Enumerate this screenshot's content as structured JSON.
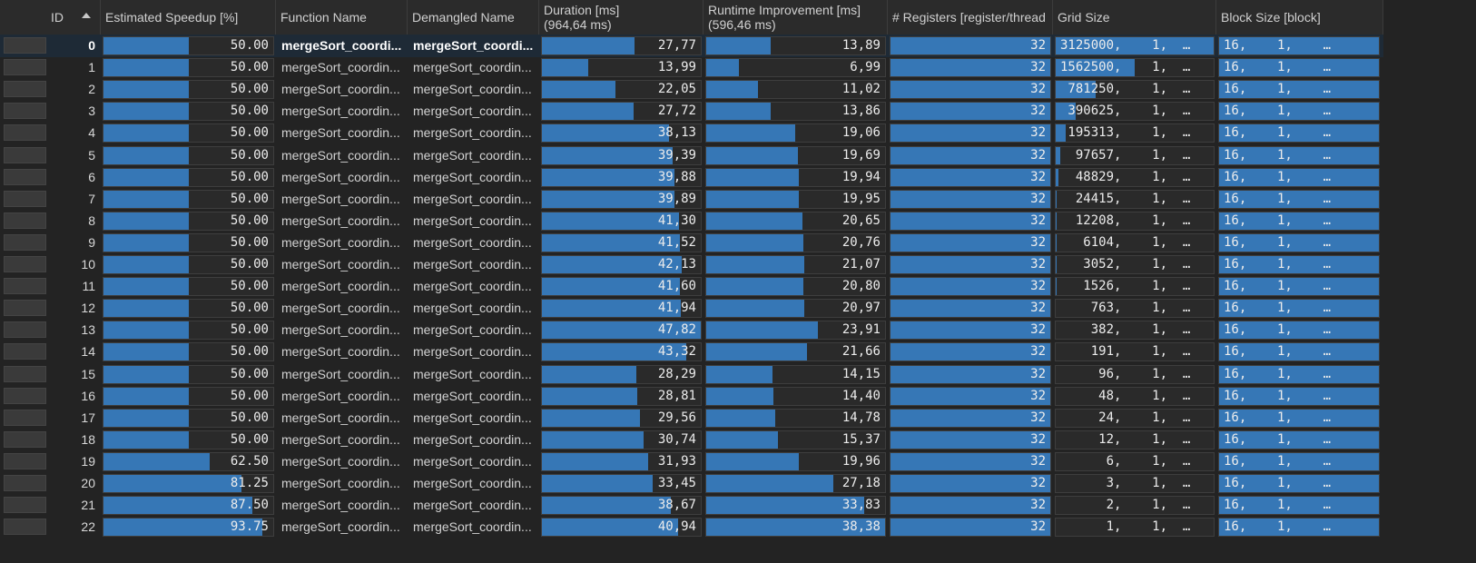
{
  "columns": {
    "id": "ID",
    "speedup": "Estimated Speedup [%]",
    "function": "Function Name",
    "demangled": "Demangled Name",
    "duration": "Duration [ms]",
    "duration_total": "(964,64 ms)",
    "runtime": "Runtime Improvement [ms]",
    "runtime_total": "(596,46 ms)",
    "registers": "# Registers [register/thread",
    "grid": "Grid Size",
    "block": "Block Size [block]"
  },
  "colors": {
    "bar": "#3677b6",
    "background": "#232323",
    "selected_row": "#1e2a36"
  },
  "sort": {
    "column": "ID",
    "direction": "ascending",
    "icon": "sort-ascending-icon"
  },
  "scales": {
    "speedup_max": 100,
    "duration_max": 47.82,
    "runtime_max": 38.38,
    "grid_max": 3125000
  },
  "rows": [
    {
      "id": "0",
      "speedup": 50.0,
      "speedup_text": "50.00",
      "fn": "mergeSort_coordi...",
      "dm": "mergeSort_coordi...",
      "dur": 27.77,
      "dur_text": "27,77",
      "rt": 13.89,
      "rt_text": "13,89",
      "reg": "32",
      "grid": 3125000,
      "grid_text": "3125000,    1,  …",
      "block": "16,    1,    …"
    },
    {
      "id": "1",
      "speedup": 50.0,
      "speedup_text": "50.00",
      "fn": "mergeSort_coordin...",
      "dm": "mergeSort_coordin...",
      "dur": 13.99,
      "dur_text": "13,99",
      "rt": 6.99,
      "rt_text": "6,99",
      "reg": "32",
      "grid": 1562500,
      "grid_text": "1562500,    1,  …",
      "block": "16,    1,    …"
    },
    {
      "id": "2",
      "speedup": 50.0,
      "speedup_text": "50.00",
      "fn": "mergeSort_coordin...",
      "dm": "mergeSort_coordin...",
      "dur": 22.05,
      "dur_text": "22,05",
      "rt": 11.02,
      "rt_text": "11,02",
      "reg": "32",
      "grid": 781250,
      "grid_text": " 781250,    1,  …",
      "block": "16,    1,    …"
    },
    {
      "id": "3",
      "speedup": 50.0,
      "speedup_text": "50.00",
      "fn": "mergeSort_coordin...",
      "dm": "mergeSort_coordin...",
      "dur": 27.72,
      "dur_text": "27,72",
      "rt": 13.86,
      "rt_text": "13,86",
      "reg": "32",
      "grid": 390625,
      "grid_text": " 390625,    1,  …",
      "block": "16,    1,    …"
    },
    {
      "id": "4",
      "speedup": 50.0,
      "speedup_text": "50.00",
      "fn": "mergeSort_coordin...",
      "dm": "mergeSort_coordin...",
      "dur": 38.13,
      "dur_text": "38,13",
      "rt": 19.06,
      "rt_text": "19,06",
      "reg": "32",
      "grid": 195313,
      "grid_text": " 195313,    1,  …",
      "block": "16,    1,    …"
    },
    {
      "id": "5",
      "speedup": 50.0,
      "speedup_text": "50.00",
      "fn": "mergeSort_coordin...",
      "dm": "mergeSort_coordin...",
      "dur": 39.39,
      "dur_text": "39,39",
      "rt": 19.69,
      "rt_text": "19,69",
      "reg": "32",
      "grid": 97657,
      "grid_text": "  97657,    1,  …",
      "block": "16,    1,    …"
    },
    {
      "id": "6",
      "speedup": 50.0,
      "speedup_text": "50.00",
      "fn": "mergeSort_coordin...",
      "dm": "mergeSort_coordin...",
      "dur": 39.88,
      "dur_text": "39,88",
      "rt": 19.94,
      "rt_text": "19,94",
      "reg": "32",
      "grid": 48829,
      "grid_text": "  48829,    1,  …",
      "block": "16,    1,    …"
    },
    {
      "id": "7",
      "speedup": 50.0,
      "speedup_text": "50.00",
      "fn": "mergeSort_coordin...",
      "dm": "mergeSort_coordin...",
      "dur": 39.89,
      "dur_text": "39,89",
      "rt": 19.95,
      "rt_text": "19,95",
      "reg": "32",
      "grid": 24415,
      "grid_text": "  24415,    1,  …",
      "block": "16,    1,    …"
    },
    {
      "id": "8",
      "speedup": 50.0,
      "speedup_text": "50.00",
      "fn": "mergeSort_coordin...",
      "dm": "mergeSort_coordin...",
      "dur": 41.3,
      "dur_text": "41,30",
      "rt": 20.65,
      "rt_text": "20,65",
      "reg": "32",
      "grid": 12208,
      "grid_text": "  12208,    1,  …",
      "block": "16,    1,    …"
    },
    {
      "id": "9",
      "speedup": 50.0,
      "speedup_text": "50.00",
      "fn": "mergeSort_coordin...",
      "dm": "mergeSort_coordin...",
      "dur": 41.52,
      "dur_text": "41,52",
      "rt": 20.76,
      "rt_text": "20,76",
      "reg": "32",
      "grid": 6104,
      "grid_text": "   6104,    1,  …",
      "block": "16,    1,    …"
    },
    {
      "id": "10",
      "speedup": 50.0,
      "speedup_text": "50.00",
      "fn": "mergeSort_coordin...",
      "dm": "mergeSort_coordin...",
      "dur": 42.13,
      "dur_text": "42,13",
      "rt": 21.07,
      "rt_text": "21,07",
      "reg": "32",
      "grid": 3052,
      "grid_text": "   3052,    1,  …",
      "block": "16,    1,    …"
    },
    {
      "id": "11",
      "speedup": 50.0,
      "speedup_text": "50.00",
      "fn": "mergeSort_coordin...",
      "dm": "mergeSort_coordin...",
      "dur": 41.6,
      "dur_text": "41,60",
      "rt": 20.8,
      "rt_text": "20,80",
      "reg": "32",
      "grid": 1526,
      "grid_text": "   1526,    1,  …",
      "block": "16,    1,    …"
    },
    {
      "id": "12",
      "speedup": 50.0,
      "speedup_text": "50.00",
      "fn": "mergeSort_coordin...",
      "dm": "mergeSort_coordin...",
      "dur": 41.94,
      "dur_text": "41,94",
      "rt": 20.97,
      "rt_text": "20,97",
      "reg": "32",
      "grid": 763,
      "grid_text": "    763,    1,  …",
      "block": "16,    1,    …"
    },
    {
      "id": "13",
      "speedup": 50.0,
      "speedup_text": "50.00",
      "fn": "mergeSort_coordin...",
      "dm": "mergeSort_coordin...",
      "dur": 47.82,
      "dur_text": "47,82",
      "rt": 23.91,
      "rt_text": "23,91",
      "reg": "32",
      "grid": 382,
      "grid_text": "    382,    1,  …",
      "block": "16,    1,    …"
    },
    {
      "id": "14",
      "speedup": 50.0,
      "speedup_text": "50.00",
      "fn": "mergeSort_coordin...",
      "dm": "mergeSort_coordin...",
      "dur": 43.32,
      "dur_text": "43,32",
      "rt": 21.66,
      "rt_text": "21,66",
      "reg": "32",
      "grid": 191,
      "grid_text": "    191,    1,  …",
      "block": "16,    1,    …"
    },
    {
      "id": "15",
      "speedup": 50.0,
      "speedup_text": "50.00",
      "fn": "mergeSort_coordin...",
      "dm": "mergeSort_coordin...",
      "dur": 28.29,
      "dur_text": "28,29",
      "rt": 14.15,
      "rt_text": "14,15",
      "reg": "32",
      "grid": 96,
      "grid_text": "     96,    1,  …",
      "block": "16,    1,    …"
    },
    {
      "id": "16",
      "speedup": 50.0,
      "speedup_text": "50.00",
      "fn": "mergeSort_coordin...",
      "dm": "mergeSort_coordin...",
      "dur": 28.81,
      "dur_text": "28,81",
      "rt": 14.4,
      "rt_text": "14,40",
      "reg": "32",
      "grid": 48,
      "grid_text": "     48,    1,  …",
      "block": "16,    1,    …"
    },
    {
      "id": "17",
      "speedup": 50.0,
      "speedup_text": "50.00",
      "fn": "mergeSort_coordin...",
      "dm": "mergeSort_coordin...",
      "dur": 29.56,
      "dur_text": "29,56",
      "rt": 14.78,
      "rt_text": "14,78",
      "reg": "32",
      "grid": 24,
      "grid_text": "     24,    1,  …",
      "block": "16,    1,    …"
    },
    {
      "id": "18",
      "speedup": 50.0,
      "speedup_text": "50.00",
      "fn": "mergeSort_coordin...",
      "dm": "mergeSort_coordin...",
      "dur": 30.74,
      "dur_text": "30,74",
      "rt": 15.37,
      "rt_text": "15,37",
      "reg": "32",
      "grid": 12,
      "grid_text": "     12,    1,  …",
      "block": "16,    1,    …"
    },
    {
      "id": "19",
      "speedup": 62.5,
      "speedup_text": "62.50",
      "fn": "mergeSort_coordin...",
      "dm": "mergeSort_coordin...",
      "dur": 31.93,
      "dur_text": "31,93",
      "rt": 19.96,
      "rt_text": "19,96",
      "reg": "32",
      "grid": 6,
      "grid_text": "      6,    1,  …",
      "block": "16,    1,    …"
    },
    {
      "id": "20",
      "speedup": 81.25,
      "speedup_text": "81.25",
      "fn": "mergeSort_coordin...",
      "dm": "mergeSort_coordin...",
      "dur": 33.45,
      "dur_text": "33,45",
      "rt": 27.18,
      "rt_text": "27,18",
      "reg": "32",
      "grid": 3,
      "grid_text": "      3,    1,  …",
      "block": "16,    1,    …"
    },
    {
      "id": "21",
      "speedup": 87.5,
      "speedup_text": "87.50",
      "fn": "mergeSort_coordin...",
      "dm": "mergeSort_coordin...",
      "dur": 38.67,
      "dur_text": "38,67",
      "rt": 33.83,
      "rt_text": "33,83",
      "reg": "32",
      "grid": 2,
      "grid_text": "      2,    1,  …",
      "block": "16,    1,    …"
    },
    {
      "id": "22",
      "speedup": 93.75,
      "speedup_text": "93.75",
      "fn": "mergeSort_coordin...",
      "dm": "mergeSort_coordin...",
      "dur": 40.94,
      "dur_text": "40,94",
      "rt": 38.38,
      "rt_text": "38,38",
      "reg": "32",
      "grid": 1,
      "grid_text": "      1,    1,  …",
      "block": "16,    1,    …"
    }
  ],
  "selected_row": "0"
}
